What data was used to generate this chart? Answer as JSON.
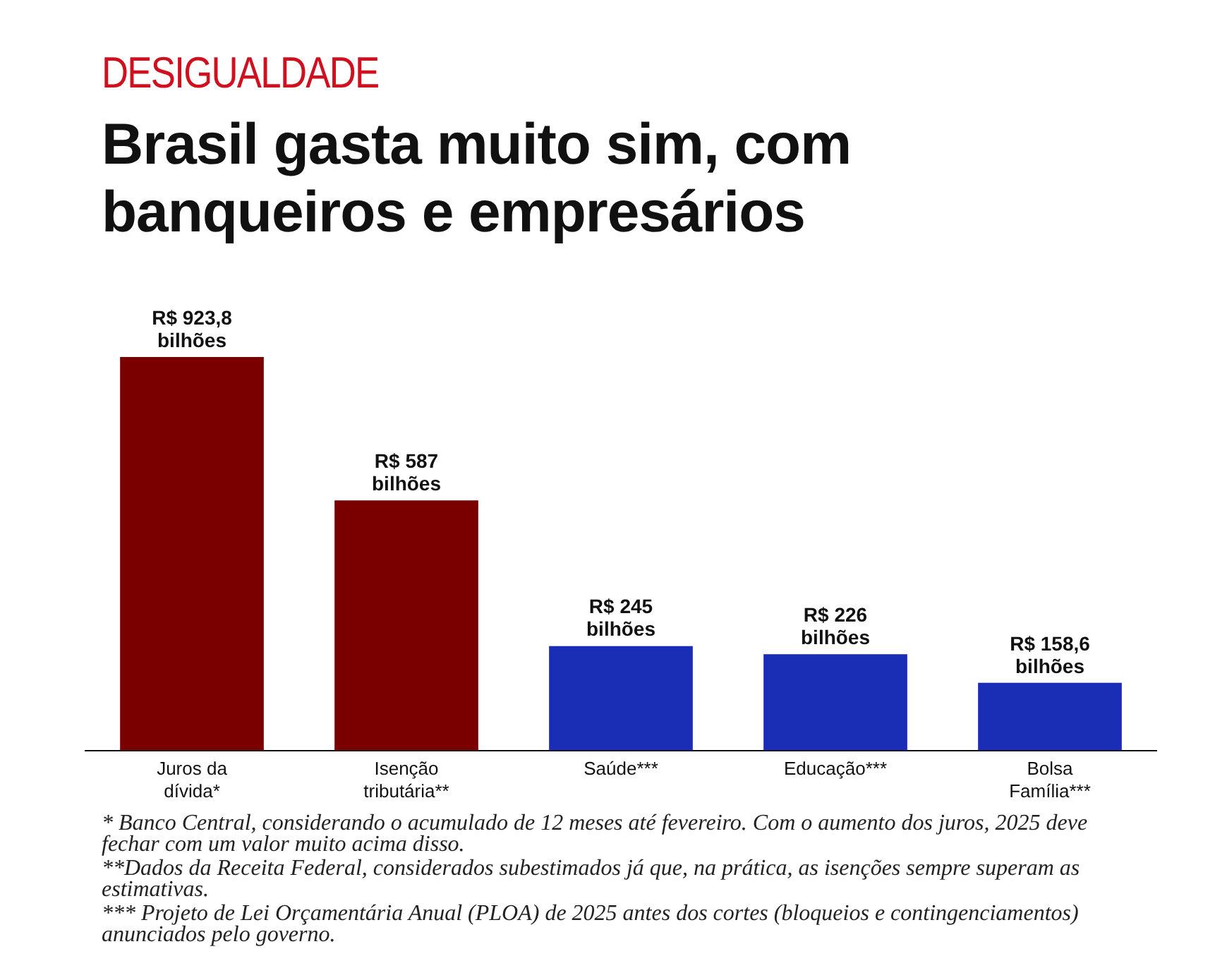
{
  "chart_data": {
    "type": "bar",
    "subtitle": "DESIGUALDADE",
    "title": "Brasil gasta muito sim, com banqueiros e empresários",
    "categories": [
      "Juros da dívida*",
      "Isenção tributária**",
      "Saúde***",
      "Educação***",
      "Bolsa Família***"
    ],
    "values": [
      923.8,
      587,
      245,
      226,
      158.6
    ],
    "colors": [
      "#7a0000",
      "#7a0000",
      "#1a2db5",
      "#1a2db5",
      "#1a2db5"
    ],
    "value_labels": [
      "R$ 923,8 bilhões",
      "R$ 587 bilhões",
      "R$ 245 bilhões",
      "R$ 226 bilhões",
      "R$ 158,6 bilhões"
    ],
    "grid": false,
    "legend": false,
    "tick_labels": "x",
    "annotations": [
      "* Banco Central, considerando o acumulado de 12 meses até fevereiro. Com o aumento dos juros, 2025 deve fechar com um valor muito acima disso.",
      "**Dados da Receita Federal, considerados subestimados já que, na prática, as isenções sempre superam as estimativas.",
      "*** Projeto de Lei Orçamentária Anual (PLOA) de 2025 antes dos cortes (bloqueios e contingenciamentos) anunciados pelo governo."
    ]
  }
}
